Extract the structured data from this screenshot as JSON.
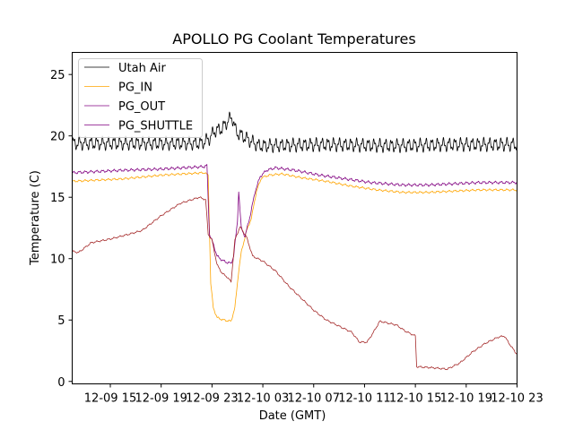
{
  "chart_data": {
    "type": "line",
    "title": "APOLLO PG Coolant Temperatures",
    "xlabel": "Date (GMT)",
    "ylabel": "Temperature (C)",
    "xlim_hours": [
      0,
      35
    ],
    "ylim": [
      -0.2,
      26.8
    ],
    "x_ticks": [
      {
        "hour": 3,
        "label": "12-09 15"
      },
      {
        "hour": 7,
        "label": "12-09 19"
      },
      {
        "hour": 11,
        "label": "12-09 23"
      },
      {
        "hour": 15,
        "label": "12-10 03"
      },
      {
        "hour": 19,
        "label": "12-10 07"
      },
      {
        "hour": 23,
        "label": "12-10 11"
      },
      {
        "hour": 27,
        "label": "12-10 15"
      },
      {
        "hour": 31,
        "label": "12-10 19"
      },
      {
        "hour": 35,
        "label": "12-10 23"
      }
    ],
    "y_ticks": [
      0,
      5,
      10,
      15,
      20,
      25
    ],
    "legend_position": "upper-left",
    "series": [
      {
        "name": "Utah Air",
        "color": "#000000",
        "points": [
          [
            0,
            19.4
          ],
          [
            10.2,
            19.4
          ],
          [
            10.8,
            19.8
          ],
          [
            11.2,
            20.4
          ],
          [
            11.8,
            20.6
          ],
          [
            12.3,
            21.3
          ],
          [
            12.6,
            21.5
          ],
          [
            12.9,
            20.3
          ],
          [
            13.4,
            20.0
          ],
          [
            14.0,
            19.6
          ],
          [
            14.7,
            19.2
          ],
          [
            20,
            19.3
          ],
          [
            25,
            19.2
          ],
          [
            30,
            19.3
          ],
          [
            35,
            19.3
          ]
        ],
        "oscillation": 0.4
      },
      {
        "name": "PG_IN",
        "color": "#ffa500",
        "points": [
          [
            0,
            16.3
          ],
          [
            4,
            16.5
          ],
          [
            7,
            16.8
          ],
          [
            10.4,
            17.0
          ],
          [
            10.7,
            16.8
          ],
          [
            10.9,
            8.0
          ],
          [
            11.1,
            6.0
          ],
          [
            11.4,
            5.2
          ],
          [
            11.9,
            5.0
          ],
          [
            12.5,
            4.9
          ],
          [
            12.8,
            6.0
          ],
          [
            13.1,
            9.0
          ],
          [
            13.3,
            10.5
          ],
          [
            13.7,
            12.2
          ],
          [
            14.1,
            13.3
          ],
          [
            14.5,
            15.5
          ],
          [
            14.9,
            16.6
          ],
          [
            15.5,
            16.8
          ],
          [
            16.5,
            16.9
          ],
          [
            18,
            16.6
          ],
          [
            20,
            16.3
          ],
          [
            22,
            15.9
          ],
          [
            24,
            15.6
          ],
          [
            26,
            15.4
          ],
          [
            28,
            15.4
          ],
          [
            30,
            15.5
          ],
          [
            32,
            15.6
          ],
          [
            35,
            15.6
          ]
        ],
        "oscillation": 0.06
      },
      {
        "name": "PG_OUT",
        "color": "#800080",
        "points": [
          [
            0,
            17.0
          ],
          [
            4,
            17.2
          ],
          [
            7,
            17.3
          ],
          [
            10.4,
            17.5
          ],
          [
            10.6,
            17.6
          ],
          [
            10.8,
            12.0
          ],
          [
            11.1,
            11.2
          ],
          [
            11.4,
            10.2
          ],
          [
            11.9,
            9.8
          ],
          [
            12.5,
            9.6
          ],
          [
            12.7,
            10.2
          ],
          [
            13.0,
            13.0
          ],
          [
            13.1,
            15.5
          ],
          [
            13.3,
            12.5
          ],
          [
            13.6,
            11.8
          ],
          [
            14.0,
            13.5
          ],
          [
            14.4,
            15.5
          ],
          [
            14.8,
            16.7
          ],
          [
            15.3,
            17.2
          ],
          [
            16,
            17.4
          ],
          [
            17.5,
            17.2
          ],
          [
            19.5,
            16.8
          ],
          [
            21.5,
            16.5
          ],
          [
            23.5,
            16.2
          ],
          [
            26,
            16.0
          ],
          [
            28,
            16.0
          ],
          [
            30,
            16.1
          ],
          [
            32,
            16.2
          ],
          [
            35,
            16.2
          ]
        ],
        "oscillation": 0.08
      },
      {
        "name": "PG_SHUTTLE",
        "color": "#a52a2a",
        "points": [
          [
            0,
            10.6
          ],
          [
            0.5,
            10.5
          ],
          [
            1.5,
            11.3
          ],
          [
            3,
            11.6
          ],
          [
            4.5,
            12.0
          ],
          [
            5.5,
            12.3
          ],
          [
            7,
            13.5
          ],
          [
            8.5,
            14.5
          ],
          [
            10,
            15.0
          ],
          [
            10.5,
            14.8
          ],
          [
            10.7,
            12.0
          ],
          [
            11.0,
            11.5
          ],
          [
            11.4,
            9.5
          ],
          [
            11.8,
            8.8
          ],
          [
            12.2,
            8.5
          ],
          [
            12.5,
            8.1
          ],
          [
            12.8,
            11.5
          ],
          [
            13.2,
            12.6
          ],
          [
            13.7,
            11.8
          ],
          [
            14.2,
            10.2
          ],
          [
            15,
            9.8
          ],
          [
            16,
            9.0
          ],
          [
            17,
            7.8
          ],
          [
            18,
            6.8
          ],
          [
            19,
            5.8
          ],
          [
            20,
            5.0
          ],
          [
            21,
            4.5
          ],
          [
            22,
            4.0
          ],
          [
            22.6,
            3.2
          ],
          [
            23.2,
            3.2
          ],
          [
            23.7,
            4.0
          ],
          [
            24.2,
            4.9
          ],
          [
            25.5,
            4.6
          ],
          [
            26.2,
            4.1
          ],
          [
            27.0,
            3.7
          ],
          [
            27.1,
            1.2
          ],
          [
            28.5,
            1.1
          ],
          [
            29.5,
            1.0
          ],
          [
            30.5,
            1.5
          ],
          [
            31.5,
            2.4
          ],
          [
            32.5,
            3.1
          ],
          [
            33.5,
            3.6
          ],
          [
            34,
            3.7
          ],
          [
            34.5,
            2.9
          ],
          [
            35,
            2.2
          ]
        ],
        "oscillation": 0.05
      }
    ]
  }
}
